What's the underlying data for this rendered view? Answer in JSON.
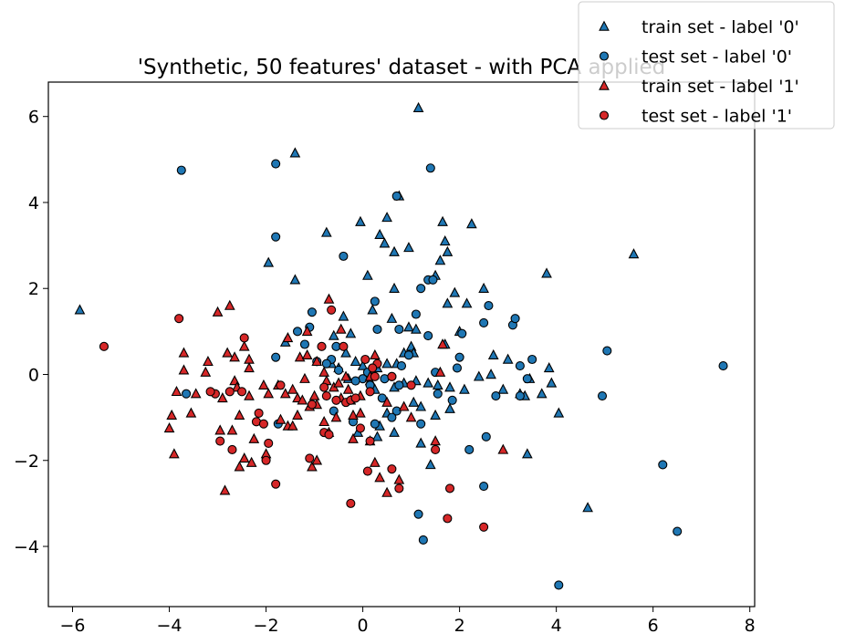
{
  "chart_data": {
    "type": "scatter",
    "title": "'Synthetic, 50 features' dataset - with PCA applied",
    "xlabel": "",
    "ylabel": "",
    "xlim": [
      -6.5,
      8.1
    ],
    "ylim": [
      -5.4,
      6.8
    ],
    "xticks": [
      -6,
      -4,
      -2,
      0,
      2,
      4,
      6,
      8
    ],
    "yticks": [
      -4,
      -2,
      0,
      2,
      4,
      6
    ],
    "grid": false,
    "legend_position": "top-right",
    "series": [
      {
        "name": "train set - label '0'",
        "marker": "triangle",
        "color": "#1f77b4",
        "points": [
          [
            -5.85,
            1.5
          ],
          [
            -1.4,
            5.15
          ],
          [
            1.15,
            6.2
          ],
          [
            -1.95,
            2.6
          ],
          [
            -1.4,
            2.2
          ],
          [
            -0.75,
            3.3
          ],
          [
            -0.05,
            3.55
          ],
          [
            0.35,
            3.25
          ],
          [
            0.45,
            3.05
          ],
          [
            0.5,
            3.65
          ],
          [
            0.65,
            2.85
          ],
          [
            0.75,
            4.15
          ],
          [
            0.95,
            2.95
          ],
          [
            1.5,
            2.3
          ],
          [
            1.65,
            3.55
          ],
          [
            1.7,
            3.1
          ],
          [
            1.75,
            2.85
          ],
          [
            1.6,
            2.65
          ],
          [
            2.25,
            3.5
          ],
          [
            5.6,
            2.8
          ],
          [
            3.8,
            2.35
          ],
          [
            2.5,
            2.0
          ],
          [
            1.9,
            1.9
          ],
          [
            1.75,
            1.65
          ],
          [
            0.65,
            2.0
          ],
          [
            0.1,
            2.3
          ],
          [
            -0.4,
            1.35
          ],
          [
            -0.25,
            0.95
          ],
          [
            0.2,
            1.5
          ],
          [
            0.6,
            1.3
          ],
          [
            0.95,
            1.1
          ],
          [
            1.1,
            1.05
          ],
          [
            2.15,
            1.65
          ],
          [
            2.0,
            1.0
          ],
          [
            1.7,
            0.7
          ],
          [
            1.0,
            0.65
          ],
          [
            0.85,
            0.5
          ],
          [
            1.05,
            0.5
          ],
          [
            0.5,
            0.25
          ],
          [
            0.3,
            0.15
          ],
          [
            0.0,
            0.2
          ],
          [
            -0.35,
            0.5
          ],
          [
            -0.5,
            0.15
          ],
          [
            -0.3,
            -0.1
          ],
          [
            0.15,
            -0.15
          ],
          [
            0.25,
            -0.35
          ],
          [
            0.65,
            -0.3
          ],
          [
            0.85,
            -0.2
          ],
          [
            1.1,
            -0.15
          ],
          [
            1.35,
            -0.2
          ],
          [
            1.55,
            -0.25
          ],
          [
            1.8,
            -0.3
          ],
          [
            2.1,
            -0.35
          ],
          [
            2.4,
            -0.05
          ],
          [
            2.7,
            0.45
          ],
          [
            2.65,
            0.0
          ],
          [
            3.0,
            0.35
          ],
          [
            3.25,
            -0.45
          ],
          [
            3.35,
            -0.5
          ],
          [
            3.45,
            -0.1
          ],
          [
            3.7,
            -0.45
          ],
          [
            3.85,
            0.15
          ],
          [
            3.9,
            -0.2
          ],
          [
            4.05,
            -0.9
          ],
          [
            3.4,
            -1.85
          ],
          [
            4.65,
            -3.1
          ],
          [
            2.9,
            -0.35
          ],
          [
            1.5,
            -0.95
          ],
          [
            1.8,
            -0.8
          ],
          [
            1.2,
            -0.75
          ],
          [
            1.05,
            -0.65
          ],
          [
            0.5,
            -0.9
          ],
          [
            0.35,
            -1.2
          ],
          [
            0.65,
            -1.35
          ],
          [
            0.3,
            -1.45
          ],
          [
            -0.1,
            -1.35
          ],
          [
            1.2,
            -1.6
          ],
          [
            1.4,
            -2.1
          ],
          [
            -1.6,
            0.75
          ],
          [
            -0.6,
            0.9
          ],
          [
            0.7,
            0.25
          ],
          [
            -0.15,
            0.3
          ],
          [
            -0.65,
            0.25
          ]
        ]
      },
      {
        "name": "test set - label '0'",
        "marker": "circle",
        "color": "#1f77b4",
        "points": [
          [
            -3.75,
            4.75
          ],
          [
            -1.8,
            4.9
          ],
          [
            1.4,
            4.8
          ],
          [
            -1.8,
            3.2
          ],
          [
            0.7,
            4.15
          ],
          [
            -0.4,
            2.75
          ],
          [
            1.35,
            2.2
          ],
          [
            1.45,
            2.2
          ],
          [
            1.2,
            2.0
          ],
          [
            0.25,
            1.7
          ],
          [
            -1.1,
            1.1
          ],
          [
            -1.35,
            1.0
          ],
          [
            -0.55,
            0.65
          ],
          [
            -1.8,
            0.4
          ],
          [
            -3.65,
            -0.45
          ],
          [
            0.3,
            1.05
          ],
          [
            0.75,
            1.05
          ],
          [
            1.1,
            1.4
          ],
          [
            1.35,
            0.9
          ],
          [
            2.05,
            0.95
          ],
          [
            2.6,
            1.6
          ],
          [
            2.5,
            1.2
          ],
          [
            3.1,
            1.15
          ],
          [
            3.15,
            1.3
          ],
          [
            3.5,
            0.35
          ],
          [
            5.05,
            0.55
          ],
          [
            7.45,
            0.2
          ],
          [
            4.95,
            -0.5
          ],
          [
            6.2,
            -2.1
          ],
          [
            6.5,
            -3.65
          ],
          [
            4.05,
            -4.9
          ],
          [
            2.5,
            -2.6
          ],
          [
            2.55,
            -1.45
          ],
          [
            2.2,
            -1.75
          ],
          [
            1.25,
            -3.85
          ],
          [
            1.15,
            -3.25
          ],
          [
            1.2,
            -1.15
          ],
          [
            1.55,
            -0.45
          ],
          [
            1.85,
            -0.6
          ],
          [
            2.75,
            -0.5
          ],
          [
            3.25,
            0.2
          ],
          [
            3.4,
            -0.1
          ],
          [
            3.25,
            -0.5
          ],
          [
            1.95,
            0.15
          ],
          [
            2.0,
            0.4
          ],
          [
            1.5,
            0.05
          ],
          [
            0.95,
            0.45
          ],
          [
            0.8,
            0.2
          ],
          [
            0.6,
            -0.05
          ],
          [
            0.0,
            -0.1
          ],
          [
            -0.15,
            -0.15
          ],
          [
            0.4,
            -0.55
          ],
          [
            0.7,
            -0.85
          ],
          [
            0.6,
            -1.0
          ],
          [
            -0.6,
            -0.85
          ],
          [
            -0.5,
            0.1
          ],
          [
            -0.65,
            0.35
          ],
          [
            -1.05,
            1.45
          ],
          [
            -1.2,
            0.7
          ],
          [
            -0.95,
            0.3
          ],
          [
            -0.75,
            0.25
          ],
          [
            0.1,
            0.05
          ],
          [
            0.45,
            -0.1
          ],
          [
            0.25,
            -1.15
          ],
          [
            -0.2,
            -1.1
          ],
          [
            -1.75,
            -1.15
          ],
          [
            0.75,
            -0.25
          ],
          [
            0.15,
            -0.25
          ]
        ]
      },
      {
        "name": "train set - label '1'",
        "marker": "triangle",
        "color": "#d62728",
        "points": [
          [
            -3.7,
            0.5
          ],
          [
            -3.7,
            0.1
          ],
          [
            -3.85,
            -0.4
          ],
          [
            -3.45,
            -0.45
          ],
          [
            -3.55,
            -0.9
          ],
          [
            -3.25,
            0.05
          ],
          [
            -3.2,
            0.3
          ],
          [
            -3.0,
            1.45
          ],
          [
            -2.75,
            1.6
          ],
          [
            -2.8,
            0.5
          ],
          [
            -2.65,
            0.4
          ],
          [
            -2.45,
            0.65
          ],
          [
            -2.35,
            0.35
          ],
          [
            -2.35,
            0.15
          ],
          [
            -2.35,
            -0.5
          ],
          [
            -2.55,
            -0.95
          ],
          [
            -2.65,
            -0.15
          ],
          [
            -2.6,
            -0.3
          ],
          [
            -2.9,
            -0.55
          ],
          [
            -2.95,
            -1.3
          ],
          [
            -2.7,
            -1.3
          ],
          [
            -2.45,
            -1.95
          ],
          [
            -2.55,
            -2.15
          ],
          [
            -2.85,
            -2.7
          ],
          [
            -2.3,
            -2.05
          ],
          [
            -2.25,
            -1.5
          ],
          [
            -2.0,
            -1.85
          ],
          [
            -3.95,
            -0.95
          ],
          [
            -4.0,
            -1.25
          ],
          [
            -3.9,
            -1.85
          ],
          [
            -2.05,
            -0.25
          ],
          [
            -1.95,
            -0.45
          ],
          [
            -1.75,
            -0.25
          ],
          [
            -1.6,
            -0.45
          ],
          [
            -1.45,
            -0.35
          ],
          [
            -1.35,
            -0.55
          ],
          [
            -1.2,
            -0.1
          ],
          [
            -1.25,
            -0.6
          ],
          [
            -1.0,
            -0.5
          ],
          [
            -0.95,
            -0.7
          ],
          [
            -1.1,
            -0.75
          ],
          [
            -1.55,
            -1.2
          ],
          [
            -1.45,
            -1.2
          ],
          [
            -1.7,
            -1.05
          ],
          [
            -1.35,
            -0.95
          ],
          [
            -1.05,
            -2.15
          ],
          [
            -0.95,
            -2.0
          ],
          [
            -1.55,
            0.85
          ],
          [
            -1.3,
            0.4
          ],
          [
            -1.15,
            0.45
          ],
          [
            -0.95,
            0.3
          ],
          [
            -0.8,
            0.05
          ],
          [
            -0.75,
            -0.15
          ],
          [
            -0.6,
            -0.3
          ],
          [
            -0.5,
            -0.2
          ],
          [
            -0.35,
            -0.05
          ],
          [
            -0.3,
            -0.35
          ],
          [
            -0.45,
            -0.55
          ],
          [
            -0.25,
            -0.6
          ],
          [
            -0.05,
            -0.5
          ],
          [
            -0.55,
            -1.0
          ],
          [
            -0.2,
            -0.95
          ],
          [
            -0.05,
            -0.9
          ],
          [
            -0.2,
            -1.5
          ],
          [
            0.15,
            -1.55
          ],
          [
            0.25,
            -2.05
          ],
          [
            0.35,
            -2.4
          ],
          [
            0.5,
            -2.75
          ],
          [
            0.75,
            -2.45
          ],
          [
            1.5,
            -1.55
          ],
          [
            1.6,
            0.05
          ],
          [
            1.65,
            0.7
          ],
          [
            1.0,
            -1.0
          ],
          [
            0.85,
            -0.75
          ],
          [
            0.5,
            -0.65
          ],
          [
            0.15,
            -0.05
          ],
          [
            0.25,
            0.45
          ],
          [
            -0.45,
            1.05
          ],
          [
            -0.7,
            1.75
          ],
          [
            2.9,
            -1.75
          ],
          [
            -1.15,
            1.0
          ],
          [
            -0.7,
            -1.35
          ],
          [
            -0.8,
            -1.1
          ]
        ]
      },
      {
        "name": "test set - label '1'",
        "marker": "circle",
        "color": "#d62728",
        "points": [
          [
            -5.35,
            0.65
          ],
          [
            -3.8,
            1.3
          ],
          [
            -2.45,
            0.85
          ],
          [
            -3.05,
            -0.45
          ],
          [
            -3.15,
            -0.4
          ],
          [
            -2.75,
            -0.4
          ],
          [
            -2.5,
            -0.4
          ],
          [
            -2.95,
            -1.55
          ],
          [
            -2.7,
            -1.75
          ],
          [
            -2.15,
            -0.9
          ],
          [
            -2.2,
            -1.1
          ],
          [
            -2.05,
            -1.15
          ],
          [
            -1.95,
            -1.6
          ],
          [
            -2.0,
            -2.0
          ],
          [
            -1.8,
            -2.55
          ],
          [
            -1.7,
            -0.25
          ],
          [
            -1.05,
            -0.7
          ],
          [
            -1.1,
            -1.95
          ],
          [
            -0.8,
            -1.35
          ],
          [
            -0.7,
            -1.4
          ],
          [
            -0.8,
            -0.3
          ],
          [
            -0.75,
            -0.5
          ],
          [
            -0.85,
            0.65
          ],
          [
            -0.65,
            1.5
          ],
          [
            -0.4,
            0.65
          ],
          [
            -0.55,
            -0.6
          ],
          [
            -0.35,
            -0.65
          ],
          [
            -0.25,
            -0.6
          ],
          [
            -0.15,
            -0.55
          ],
          [
            0.05,
            0.35
          ],
          [
            0.3,
            0.25
          ],
          [
            0.15,
            -0.4
          ],
          [
            -0.05,
            -1.25
          ],
          [
            0.15,
            -1.55
          ],
          [
            0.1,
            -2.25
          ],
          [
            -0.25,
            -3.0
          ],
          [
            0.6,
            -2.2
          ],
          [
            0.75,
            -2.65
          ],
          [
            1.0,
            -0.25
          ],
          [
            1.5,
            -1.75
          ],
          [
            1.8,
            -2.65
          ],
          [
            1.75,
            -3.35
          ],
          [
            2.5,
            -3.55
          ],
          [
            0.6,
            -0.05
          ],
          [
            0.2,
            0.15
          ],
          [
            0.25,
            -0.05
          ]
        ]
      }
    ]
  }
}
